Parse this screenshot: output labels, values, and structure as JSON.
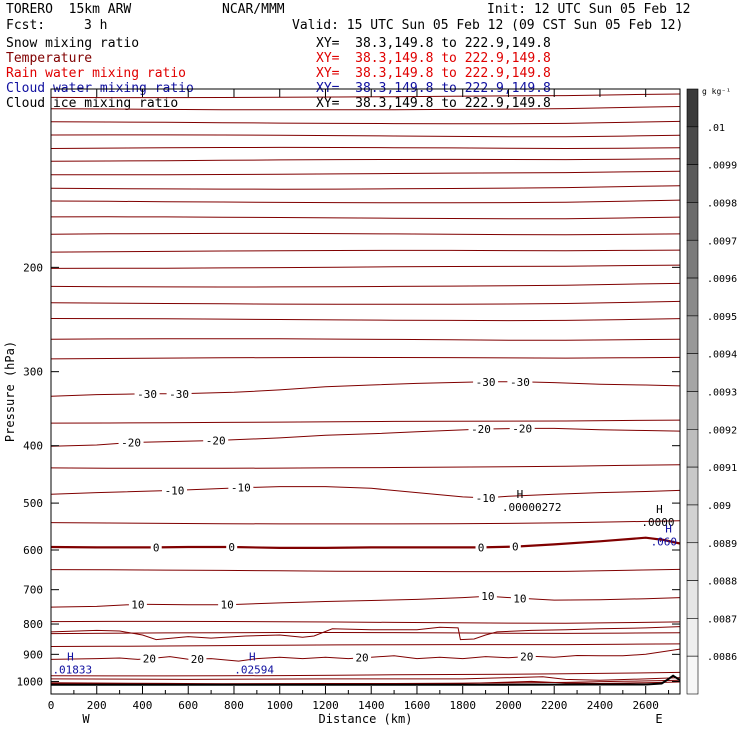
{
  "header": {
    "model": "TORERO  15km ARW",
    "center": "NCAR/MMM",
    "init": "Init: 12 UTC Sun 05 Feb 12",
    "fcst_label": "Fcst:",
    "fcst_value": "3 h",
    "valid": "Valid: 15 UTC Sun 05 Feb 12 (09 CST Sun 05 Feb 12)"
  },
  "fields": [
    {
      "name": "Snow mixing ratio",
      "color": "#000000",
      "xy": "XY=  38.3,149.8 to 222.9,149.8",
      "xy_color": "#000000"
    },
    {
      "name": "Temperature",
      "color": "#800000",
      "xy": "XY=  38.3,149.8 to 222.9,149.8",
      "xy_color": "#e00000"
    },
    {
      "name": "Rain water mixing ratio",
      "color": "#e00000",
      "xy": "XY=  38.3,149.8 to 222.9,149.8",
      "xy_color": "#e00000"
    },
    {
      "name": "Cloud water mixing ratio",
      "color": "#1010a0",
      "xy": "XY=  38.3,149.8 to 222.9,149.8",
      "xy_color": "#1010a0"
    },
    {
      "name": "Cloud ice mixing ratio",
      "color": "#000000",
      "xy": "XY=  38.3,149.8 to 222.9,149.8",
      "xy_color": "#000000"
    }
  ],
  "chart_data": {
    "type": "line",
    "xlabel": "Distance (km)",
    "ylabel": "Pressure (hPa)",
    "xlim": [
      0,
      2750
    ],
    "ylim": [
      1050,
      100
    ],
    "y_scale": "log",
    "x_ticks": [
      0,
      200,
      400,
      600,
      800,
      1000,
      1200,
      1400,
      1600,
      1800,
      2000,
      2200,
      2400,
      2600
    ],
    "y_ticks": [
      200,
      300,
      400,
      500,
      600,
      700,
      800,
      900,
      1000
    ],
    "x_end_labels": {
      "left": "W",
      "right": "E"
    },
    "contour_color": "#800000",
    "isotherms": [
      {
        "value": 20,
        "labels": [
          {
            "text": "20",
            "x": 430
          },
          {
            "text": "20",
            "x": 640
          },
          {
            "text": "20",
            "x": 1360
          },
          {
            "text": "20",
            "x": 2080
          }
        ],
        "points": [
          [
            0,
            918
          ],
          [
            200,
            915
          ],
          [
            300,
            913
          ],
          [
            380,
            918
          ],
          [
            430,
            915
          ],
          [
            520,
            908
          ],
          [
            600,
            917
          ],
          [
            700,
            915
          ],
          [
            820,
            924
          ],
          [
            900,
            915
          ],
          [
            1000,
            910
          ],
          [
            1100,
            915
          ],
          [
            1200,
            910
          ],
          [
            1300,
            915
          ],
          [
            1400,
            910
          ],
          [
            1500,
            905
          ],
          [
            1600,
            915
          ],
          [
            1700,
            910
          ],
          [
            1800,
            915
          ],
          [
            1900,
            908
          ],
          [
            2000,
            912
          ],
          [
            2100,
            907
          ],
          [
            2200,
            910
          ],
          [
            2300,
            904
          ],
          [
            2400,
            905
          ],
          [
            2500,
            905
          ],
          [
            2600,
            900
          ],
          [
            2750,
            882
          ]
        ]
      },
      {
        "value": 10,
        "labels": [
          {
            "text": "10",
            "x": 380
          },
          {
            "text": "10",
            "x": 770
          },
          {
            "text": "10",
            "x": 1910
          },
          {
            "text": "10",
            "x": 2050
          }
        ],
        "points": [
          [
            0,
            749
          ],
          [
            200,
            747
          ],
          [
            380,
            741
          ],
          [
            600,
            742
          ],
          [
            770,
            742
          ],
          [
            1000,
            737
          ],
          [
            1200,
            733
          ],
          [
            1400,
            730
          ],
          [
            1600,
            727
          ],
          [
            1800,
            722
          ],
          [
            1910,
            718
          ],
          [
            2050,
            724
          ],
          [
            2200,
            729
          ],
          [
            2400,
            728
          ],
          [
            2600,
            725
          ],
          [
            2750,
            722
          ]
        ]
      },
      {
        "value": 0,
        "bold": true,
        "labels": [
          {
            "text": "0",
            "x": 460
          },
          {
            "text": "0",
            "x": 790
          },
          {
            "text": "0",
            "x": 1880
          },
          {
            "text": "0",
            "x": 2030
          }
        ],
        "points": [
          [
            0,
            593
          ],
          [
            200,
            594
          ],
          [
            460,
            594
          ],
          [
            600,
            593
          ],
          [
            790,
            593
          ],
          [
            1000,
            595
          ],
          [
            1200,
            595
          ],
          [
            1400,
            594
          ],
          [
            1600,
            594
          ],
          [
            1880,
            594
          ],
          [
            2030,
            592
          ],
          [
            2200,
            587
          ],
          [
            2400,
            580
          ],
          [
            2600,
            572
          ],
          [
            2680,
            577
          ],
          [
            2750,
            585
          ]
        ]
      },
      {
        "value": -10,
        "labels": [
          {
            "text": "-10",
            "x": 540
          },
          {
            "text": "-10",
            "x": 830
          },
          {
            "text": "-10",
            "x": 1900
          }
        ],
        "points": [
          [
            0,
            483
          ],
          [
            200,
            480
          ],
          [
            540,
            476
          ],
          [
            830,
            471
          ],
          [
            1000,
            469
          ],
          [
            1200,
            469
          ],
          [
            1400,
            472
          ],
          [
            1600,
            480
          ],
          [
            1800,
            488
          ],
          [
            1900,
            490
          ],
          [
            2000,
            487
          ],
          [
            2200,
            483
          ],
          [
            2400,
            480
          ],
          [
            2600,
            478
          ],
          [
            2750,
            476
          ]
        ]
      },
      {
        "value": -20,
        "labels": [
          {
            "text": "-20",
            "x": 350
          },
          {
            "text": "-20",
            "x": 720
          },
          {
            "text": "-20",
            "x": 1880
          },
          {
            "text": "-20",
            "x": 2060
          }
        ],
        "points": [
          [
            0,
            401
          ],
          [
            200,
            399
          ],
          [
            350,
            395
          ],
          [
            720,
            392
          ],
          [
            1000,
            388
          ],
          [
            1200,
            384
          ],
          [
            1400,
            382
          ],
          [
            1600,
            379
          ],
          [
            1880,
            375
          ],
          [
            2060,
            374
          ],
          [
            2200,
            374
          ],
          [
            2400,
            376
          ],
          [
            2600,
            377
          ],
          [
            2750,
            378
          ]
        ]
      },
      {
        "value": -30,
        "labels": [
          {
            "text": "-30",
            "x": 420
          },
          {
            "text": "-30",
            "x": 560
          },
          {
            "text": "-30",
            "x": 1900
          },
          {
            "text": "-30",
            "x": 2050
          }
        ],
        "points": [
          [
            0,
            330
          ],
          [
            200,
            328
          ],
          [
            420,
            327
          ],
          [
            560,
            327
          ],
          [
            800,
            325
          ],
          [
            1000,
            322
          ],
          [
            1200,
            318
          ],
          [
            1400,
            316
          ],
          [
            1600,
            314
          ],
          [
            1900,
            312
          ],
          [
            2050,
            312
          ],
          [
            2200,
            313
          ],
          [
            2400,
            315
          ],
          [
            2600,
            316
          ],
          [
            2750,
            317
          ]
        ]
      }
    ],
    "unlabeled_isotherm_pressures": [
      1005,
      975,
      870,
      830,
      795,
      650,
      540,
      435,
      365,
      285,
      265,
      245,
      230,
      215,
      200,
      188,
      176,
      165,
      155,
      147,
      139,
      132,
      126,
      120,
      114,
      108,
      103
    ],
    "extra_contours": [
      {
        "points": [
          [
            0,
            825
          ],
          [
            200,
            820
          ],
          [
            300,
            822
          ],
          [
            400,
            835
          ],
          [
            460,
            850
          ],
          [
            600,
            840
          ],
          [
            700,
            845
          ],
          [
            850,
            838
          ],
          [
            1000,
            835
          ],
          [
            1100,
            842
          ],
          [
            1150,
            838
          ],
          [
            1230,
            815
          ],
          [
            1400,
            818
          ],
          [
            1600,
            818
          ],
          [
            1700,
            810
          ],
          [
            1780,
            812
          ],
          [
            1790,
            850
          ],
          [
            1850,
            848
          ],
          [
            1900,
            835
          ],
          [
            1950,
            825
          ],
          [
            2100,
            820
          ],
          [
            2250,
            818
          ],
          [
            2400,
            815
          ],
          [
            2600,
            812
          ],
          [
            2750,
            808
          ]
        ]
      },
      {
        "points": [
          [
            0,
            1008
          ],
          [
            600,
            1010
          ],
          [
            1200,
            1008
          ],
          [
            1800,
            1008
          ],
          [
            2100,
            1000
          ],
          [
            2250,
            1006
          ],
          [
            2400,
            1008
          ],
          [
            2600,
            1005
          ],
          [
            2750,
            1002
          ]
        ]
      },
      {
        "points": [
          [
            0,
            990
          ],
          [
            600,
            992
          ],
          [
            1200,
            990
          ],
          [
            1800,
            990
          ],
          [
            2150,
            982
          ],
          [
            2250,
            992
          ],
          [
            2400,
            995
          ],
          [
            2600,
            990
          ],
          [
            2750,
            985
          ]
        ]
      }
    ],
    "terrain": {
      "color": "#000000",
      "points": [
        [
          0,
          1013
        ],
        [
          1000,
          1013
        ],
        [
          2000,
          1013
        ],
        [
          2350,
          1012
        ],
        [
          2600,
          1012
        ],
        [
          2670,
          1008
        ],
        [
          2700,
          990
        ],
        [
          2720,
          978
        ],
        [
          2750,
          995
        ]
      ]
    },
    "maxima_labels": [
      {
        "mark": "H",
        "value": ".01833",
        "x": 85,
        "p": 922,
        "color": "#1010a0"
      },
      {
        "mark": "H",
        "value": ".02594",
        "x": 880,
        "p": 922,
        "color": "#1010a0"
      },
      {
        "mark": "H",
        "value": ".00000272",
        "x": 2050,
        "p": 490,
        "color": "#000000"
      },
      {
        "mark": "H",
        "value": ".0000",
        "x": 2660,
        "p": 520,
        "color": "#000000"
      },
      {
        "mark": "H",
        "value": ".060",
        "x": 2700,
        "p": 560,
        "color": "#1010a0"
      }
    ],
    "colorbar": {
      "unit": "g kg-1",
      "unit_label": "g kg⁻¹",
      "labels": [
        ".01",
        ".0099",
        ".0098",
        ".0097",
        ".0096",
        ".0095",
        ".0094",
        ".0093",
        ".0092",
        ".0091",
        ".009",
        ".0089",
        ".0088",
        ".0087",
        ".0086"
      ],
      "colors": [
        "#3a3a3a",
        "#4a4a4a",
        "#5a5a5a",
        "#6b6b6b",
        "#7b7b7b",
        "#8a8a8a",
        "#989898",
        "#a5a5a5",
        "#b2b2b2",
        "#bdbdbd",
        "#c8c8c8",
        "#d2d2d2",
        "#dcdcdc",
        "#e6e6e6",
        "#efefef",
        "#f7f7f7"
      ]
    }
  }
}
